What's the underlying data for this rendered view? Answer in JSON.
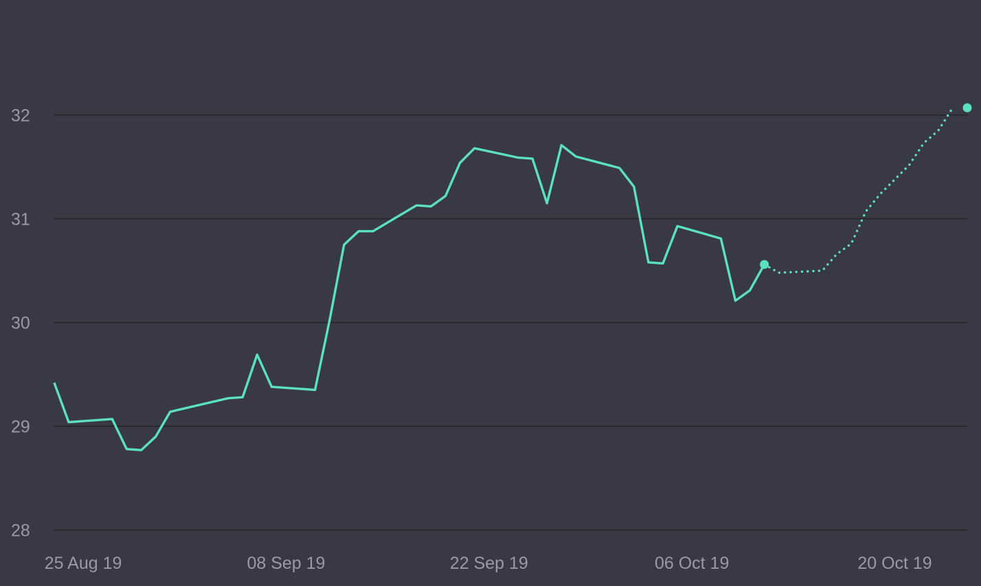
{
  "chart_data": {
    "type": "line",
    "title": "",
    "xlabel": "",
    "ylabel": "",
    "ylim": [
      28,
      32
    ],
    "yticks": [
      "28",
      "29",
      "30",
      "31",
      "32"
    ],
    "xticks": [
      {
        "date": "2019-08-25",
        "label": "25 Aug 19"
      },
      {
        "date": "2019-09-08",
        "label": "08 Sep 19"
      },
      {
        "date": "2019-09-22",
        "label": "22 Sep 19"
      },
      {
        "date": "2019-10-06",
        "label": "06 Oct 19"
      },
      {
        "date": "2019-10-20",
        "label": "20 Oct 19"
      }
    ],
    "xlim": [
      "2019-08-23",
      "2019-10-26"
    ],
    "grid": true,
    "legend": "none",
    "series": [
      {
        "style": "solid",
        "color": "#5ce1c0",
        "points": [
          [
            "2019-08-23",
            29.42
          ],
          [
            "2019-08-24",
            29.04
          ],
          [
            "2019-08-27",
            29.07
          ],
          [
            "2019-08-28",
            28.78
          ],
          [
            "2019-08-29",
            28.77
          ],
          [
            "2019-08-30",
            28.9
          ],
          [
            "2019-08-31",
            29.14
          ],
          [
            "2019-09-04",
            29.27
          ],
          [
            "2019-09-05",
            29.28
          ],
          [
            "2019-09-06",
            29.69
          ],
          [
            "2019-09-07",
            29.38
          ],
          [
            "2019-09-10",
            29.35
          ],
          [
            "2019-09-11",
            30.02
          ],
          [
            "2019-09-12",
            30.75
          ],
          [
            "2019-09-13",
            30.88
          ],
          [
            "2019-09-14",
            30.88
          ],
          [
            "2019-09-17",
            31.13
          ],
          [
            "2019-09-18",
            31.12
          ],
          [
            "2019-09-19",
            31.22
          ],
          [
            "2019-09-20",
            31.54
          ],
          [
            "2019-09-21",
            31.68
          ],
          [
            "2019-09-24",
            31.59
          ],
          [
            "2019-09-25",
            31.58
          ],
          [
            "2019-09-26",
            31.15
          ],
          [
            "2019-09-27",
            31.71
          ],
          [
            "2019-09-28",
            31.6
          ],
          [
            "2019-10-01",
            31.49
          ],
          [
            "2019-10-02",
            31.31
          ],
          [
            "2019-10-03",
            30.58
          ],
          [
            "2019-10-04",
            30.57
          ],
          [
            "2019-10-05",
            30.93
          ],
          [
            "2019-10-08",
            30.81
          ],
          [
            "2019-10-09",
            30.21
          ],
          [
            "2019-10-10",
            30.31
          ],
          [
            "2019-10-11",
            30.56
          ]
        ]
      },
      {
        "style": "dotted",
        "color": "#5ce1c0",
        "points": [
          [
            "2019-10-11",
            30.56
          ],
          [
            "2019-10-12",
            30.48
          ],
          [
            "2019-10-15",
            30.5
          ],
          [
            "2019-10-16",
            30.66
          ],
          [
            "2019-10-17",
            30.76
          ],
          [
            "2019-10-18",
            31.07
          ],
          [
            "2019-10-19",
            31.24
          ],
          [
            "2019-10-21",
            31.52
          ],
          [
            "2019-10-22",
            31.73
          ],
          [
            "2019-10-23",
            31.85
          ],
          [
            "2019-10-24",
            32.07
          ]
        ]
      }
    ],
    "markers": [
      {
        "date": "2019-10-11",
        "value": 30.56
      },
      {
        "date": "2019-10-25",
        "value": 32.07
      }
    ]
  }
}
